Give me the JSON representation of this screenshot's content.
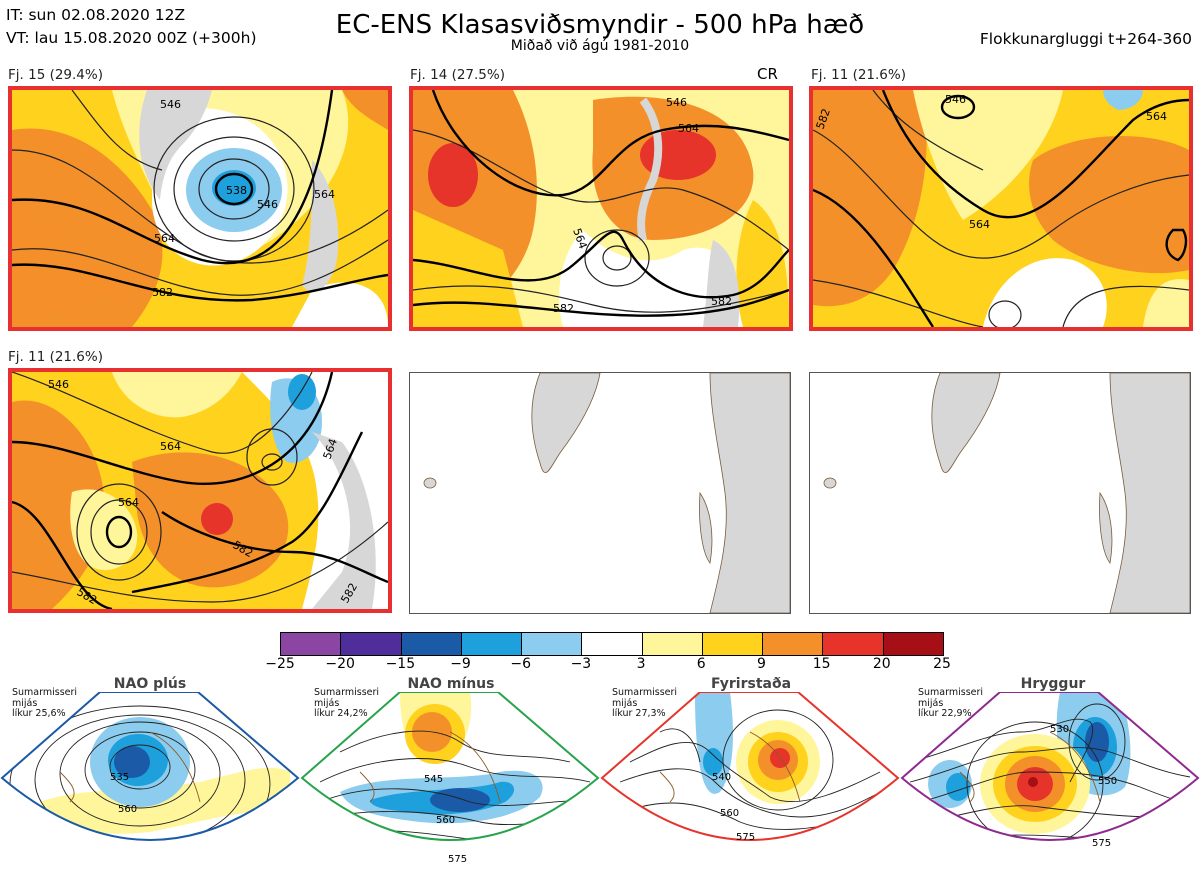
{
  "header": {
    "it_line": "IT: sun 02.08.2020 12Z",
    "vt_line": "VT: lau 15.08.2020 00Z  (+300h)",
    "title": "EC-ENS Klasasviðsmyndir - 500 hPa hæð",
    "subtitle": "Miðað við ágú 1981-2010",
    "window": "Flokkunargluggi t+264-360"
  },
  "panels": [
    {
      "label": "Fj. 15 (29.4%)",
      "contours": [
        "546",
        "538",
        "546",
        "564",
        "564",
        "582"
      ]
    },
    {
      "label": "Fj. 14 (27.5%)",
      "contours": [
        "546",
        "564",
        "564",
        "582",
        "582"
      ],
      "tag": "CR"
    },
    {
      "label": "Fj. 11 (21.6%)",
      "contours": [
        "546",
        "564",
        "582",
        "564"
      ]
    },
    {
      "label": "Fj. 11 (21.6%)",
      "contours": [
        "546",
        "564",
        "564",
        "564",
        "582",
        "582",
        "582"
      ]
    }
  ],
  "colorbar": {
    "ticks": [
      "−25",
      "−20",
      "−15",
      "−9",
      "−6",
      "−3",
      "3",
      "6",
      "9",
      "15",
      "20",
      "25"
    ],
    "colors": [
      "#8b46a4",
      "#4f2d9a",
      "#1a5aa6",
      "#1ea0dd",
      "#8cccee",
      "#ffffff",
      "#fff59a",
      "#ffd21e",
      "#f4902a",
      "#e6342b",
      "#a50f15"
    ]
  },
  "regimes": [
    {
      "name": "NAO plús",
      "note": [
        "Sumarmisseri",
        "mijás",
        "líkur 25,6%"
      ],
      "color": "#1a5aa6",
      "contours": [
        "535",
        "560"
      ]
    },
    {
      "name": "NAO mínus",
      "note": [
        "Sumarmisseri",
        "mijás",
        "líkur 24,2%"
      ],
      "color": "#26a34b",
      "contours": [
        "545",
        "560",
        "575"
      ]
    },
    {
      "name": "Fyrirstaða",
      "note": [
        "Sumarmisseri",
        "mijás",
        "líkur 27,3%"
      ],
      "color": "#e6342b",
      "contours": [
        "540",
        "560",
        "575"
      ]
    },
    {
      "name": "Hryggur",
      "note": [
        "Sumarmisseri",
        "mijás",
        "líkur 22,9%"
      ],
      "color": "#e36ee3",
      "contours": [
        "530",
        "550",
        "575"
      ]
    }
  ]
}
